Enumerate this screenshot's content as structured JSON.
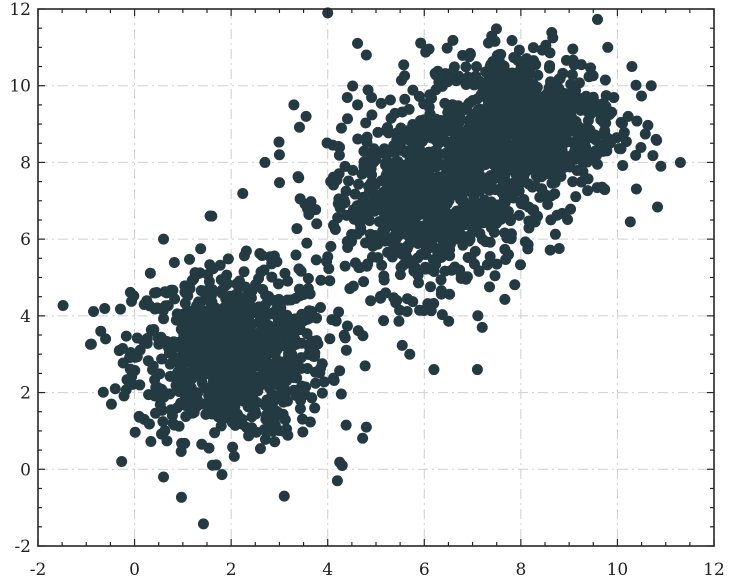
{
  "chart_data": {
    "type": "scatter",
    "title": "",
    "xlabel": "",
    "ylabel": "",
    "xlim": [
      -2,
      12
    ],
    "ylim": [
      -2,
      12
    ],
    "xticks": [
      "-2",
      "0",
      "2",
      "4",
      "6",
      "8",
      "10",
      "12"
    ],
    "yticks": [
      "-2",
      "0",
      "2",
      "4",
      "6",
      "8",
      "10",
      "12"
    ],
    "grid": true,
    "marker_color": "#243a42",
    "series": [
      {
        "clusters": [
          {
            "center": [
              2.0,
              3.0
            ],
            "std": [
              1.0,
              1.1
            ],
            "count": 900
          },
          {
            "center": [
              6.0,
              7.0
            ],
            "std": [
              1.0,
              1.2
            ],
            "count": 800
          },
          {
            "center": [
              8.0,
              9.0
            ],
            "std": [
              1.0,
              1.0
            ],
            "count": 800
          }
        ],
        "outliers": [
          [
            4.0,
            11.9
          ],
          [
            -0.7,
            3.6
          ],
          [
            -0.6,
            3.4
          ],
          [
            -0.4,
            2.1
          ],
          [
            0.6,
            -0.2
          ],
          [
            3.1,
            -0.7
          ],
          [
            4.2,
            -0.3
          ],
          [
            4.3,
            0.1
          ],
          [
            4.8,
            1.1
          ],
          [
            10.9,
            7.9
          ],
          [
            10.8,
            8.6
          ],
          [
            10.7,
            10.0
          ],
          [
            10.3,
            10.5
          ],
          [
            9.5,
            9.7
          ],
          [
            9.8,
            11.0
          ],
          [
            6.2,
            2.6
          ],
          [
            7.1,
            2.6
          ],
          [
            7.2,
            3.7
          ],
          [
            5.7,
            3.0
          ],
          [
            2.7,
            8.0
          ],
          [
            3.0,
            8.2
          ],
          [
            3.3,
            9.5
          ],
          [
            4.8,
            10.8
          ],
          [
            3.4,
            7.6
          ],
          [
            0.2,
            1.3
          ],
          [
            5.2,
            4.6
          ],
          [
            1.6,
            6.6
          ],
          [
            0.6,
            6.0
          ]
        ]
      }
    ]
  }
}
